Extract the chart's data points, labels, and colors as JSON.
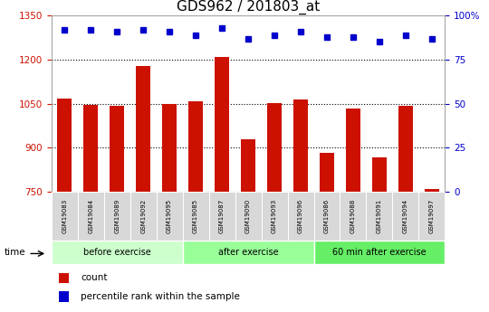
{
  "title": "GDS962 / 201803_at",
  "samples": [
    "GSM19083",
    "GSM19084",
    "GSM19089",
    "GSM19092",
    "GSM19095",
    "GSM19085",
    "GSM19087",
    "GSM19090",
    "GSM19093",
    "GSM19096",
    "GSM19086",
    "GSM19088",
    "GSM19091",
    "GSM19094",
    "GSM19097"
  ],
  "counts": [
    1068,
    1047,
    1042,
    1178,
    1048,
    1057,
    1210,
    930,
    1052,
    1065,
    882,
    1035,
    867,
    1042,
    760
  ],
  "percentile_ranks": [
    92,
    92,
    91,
    92,
    91,
    89,
    93,
    87,
    89,
    91,
    88,
    88,
    85,
    89,
    87
  ],
  "ylim_left": [
    750,
    1350
  ],
  "ylim_right": [
    0,
    100
  ],
  "yticks_left": [
    750,
    900,
    1050,
    1200,
    1350
  ],
  "yticks_right": [
    0,
    25,
    50,
    75,
    100
  ],
  "groups": [
    {
      "label": "before exercise",
      "start": 0,
      "end": 5,
      "color": "#ccffcc"
    },
    {
      "label": "after exercise",
      "start": 5,
      "end": 10,
      "color": "#99ff99"
    },
    {
      "label": "60 min after exercise",
      "start": 10,
      "end": 15,
      "color": "#66ee66"
    }
  ],
  "bar_color": "#cc1100",
  "dot_color": "#0000cc",
  "bar_width": 0.55,
  "grid_color": "#000000",
  "bg_color": "#ffffff",
  "label_color_left": "#cc1100",
  "label_color_right": "#0000cc",
  "time_label": "time",
  "legend_count": "count",
  "legend_pct": "percentile rank within the sample",
  "title_fontsize": 11,
  "tick_fontsize": 7.5,
  "axis_fontsize": 9,
  "baseline": 750
}
